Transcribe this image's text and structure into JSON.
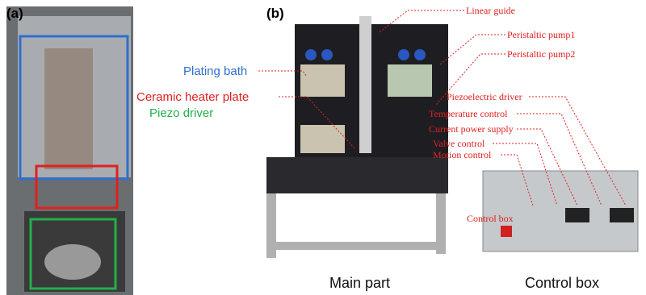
{
  "panel_a": {
    "label": "(a)"
  },
  "panel_b": {
    "label": "(b)",
    "callouts_left": [
      "Plating bath",
      "Ceramic heater plate",
      "Piezo driver"
    ],
    "callouts_right": [
      "Linear guide",
      "Peristaltic pump1",
      "Peristaltic pump2",
      "Piezoelectric driver",
      "Temperature control",
      "Current power supply",
      "Valve control",
      "Motion control"
    ],
    "box_tag": "Control box",
    "captions": [
      "Main part",
      "Control box"
    ]
  }
}
